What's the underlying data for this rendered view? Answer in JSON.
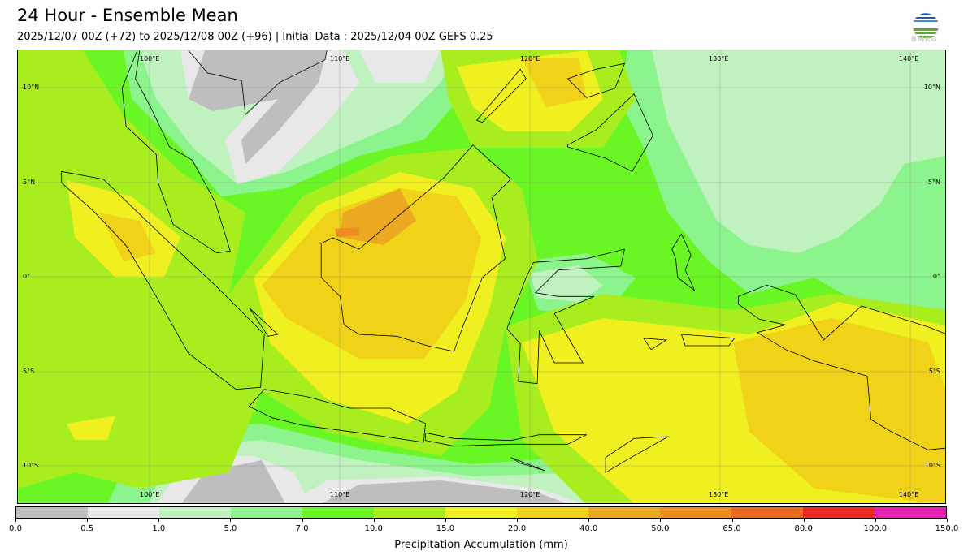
{
  "header": {
    "title": "24 Hour - Ensemble Mean",
    "subtitle": "2025/12/07 00Z (+72) to 2025/12/08 00Z (+96) | Initial Data : 2025/12/04 00Z GEFS 0.25",
    "logo_text": "BMKG"
  },
  "map": {
    "extent": {
      "lon": [
        93,
        142
      ],
      "lat": [
        -12,
        12
      ]
    },
    "lon_labels": [
      "100°E",
      "110°E",
      "120°E",
      "130°E",
      "140°E"
    ],
    "lat_labels": [
      "10°N",
      "5°N",
      "0°",
      "5°S",
      "10°S"
    ]
  },
  "colorbar": {
    "title": "Precipitation Accumulation (mm)",
    "ticks": [
      "0.0",
      "0.5",
      "1.0",
      "5.0",
      "7.0",
      "10.0",
      "15.0",
      "20.0",
      "40.0",
      "50.0",
      "65.0",
      "80.0",
      "100.0",
      "150.0"
    ],
    "colors": [
      "#bebebe",
      "#e8e8e8",
      "#c0f2c0",
      "#8cf48c",
      "#6af524",
      "#a8ee1e",
      "#f0f020",
      "#f0d218",
      "#eca820",
      "#ee8c20",
      "#ea6a22",
      "#f02a20",
      "#e620b4"
    ]
  }
}
